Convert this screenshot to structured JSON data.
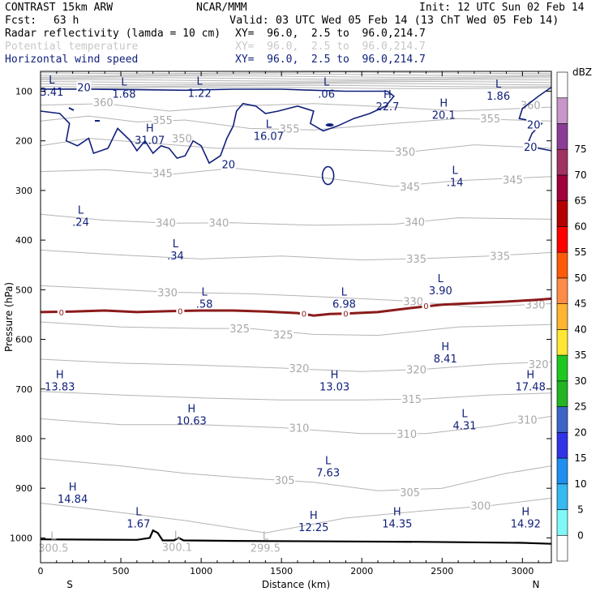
{
  "header": {
    "model": "CONTRAST 15km ARW",
    "center": "NCAR/MMM",
    "init": "Init: 12 UTC Sun 02 Feb 14",
    "fcst_label": "Fcst:",
    "fcst_value": "63 h",
    "valid": "Valid: 03 UTC Wed 05 Feb 14 (13 ChT Wed 05 Feb 14)",
    "fields": [
      {
        "name": "Radar reflectivity (lamda = 10 cm)",
        "xy": "XY=  96.0,  2.5 to  96.0,214.7",
        "color": "#000000"
      },
      {
        "name": "Potential temperature",
        "xy": "XY=  96.0,  2.5 to  96.0,214.7",
        "color": "#c8c8c8"
      },
      {
        "name": "Horizontal wind speed",
        "xy": "XY=  96.0,  2.5 to  96.0,214.7",
        "color": "#10207a"
      }
    ]
  },
  "chart_data": {
    "type": "cross-section",
    "xlabel": "Distance (km)",
    "ylabel": "Pressure (hPa)",
    "xlim": [
      0,
      3180
    ],
    "ylim": [
      1050,
      60
    ],
    "x_ticks": [
      0,
      500,
      1000,
      1500,
      2000,
      2500,
      3000
    ],
    "y_ticks": [
      100,
      200,
      300,
      400,
      500,
      600,
      700,
      800,
      900,
      1000
    ],
    "x_end_labels": {
      "left": "S",
      "right": "N"
    },
    "colorbar": {
      "unit": "dBZ",
      "levels": [
        0,
        5,
        10,
        15,
        20,
        25,
        30,
        35,
        40,
        45,
        50,
        55,
        60,
        65,
        70,
        75
      ],
      "colors": [
        "#ffffff",
        "#7ff8f8",
        "#36b8f0",
        "#1e8ff0",
        "#3232e6",
        "#3c64c8",
        "#23b423",
        "#1ec81e",
        "#ffe632",
        "#ffb432",
        "#ff8c46",
        "#ff5a0a",
        "#ff0000",
        "#b40000",
        "#a0003c",
        "#a03264",
        "#8c3c96",
        "#c896c8",
        "#ffffff"
      ]
    },
    "theta_contour_labels": [
      {
        "v": "360",
        "x": 390,
        "p": 122
      },
      {
        "v": "360",
        "x": 3050,
        "p": 128
      },
      {
        "v": "355",
        "x": 760,
        "p": 158
      },
      {
        "v": "355",
        "x": 1550,
        "p": 175
      },
      {
        "v": "355",
        "x": 2800,
        "p": 155
      },
      {
        "v": "350",
        "x": 880,
        "p": 195
      },
      {
        "v": "350",
        "x": 2270,
        "p": 222
      },
      {
        "v": "345",
        "x": 760,
        "p": 265
      },
      {
        "v": "345",
        "x": 2300,
        "p": 292
      },
      {
        "v": "345",
        "x": 2940,
        "p": 278
      },
      {
        "v": "340",
        "x": 780,
        "p": 365
      },
      {
        "v": "340",
        "x": 1110,
        "p": 365
      },
      {
        "v": "340",
        "x": 2330,
        "p": 363
      },
      {
        "v": "335",
        "x": 2340,
        "p": 437
      },
      {
        "v": "335",
        "x": 2860,
        "p": 432
      },
      {
        "v": "330",
        "x": 790,
        "p": 505
      },
      {
        "v": "330",
        "x": 2320,
        "p": 523
      },
      {
        "v": "330",
        "x": 3080,
        "p": 530
      },
      {
        "v": "325",
        "x": 1240,
        "p": 578
      },
      {
        "v": "325",
        "x": 1510,
        "p": 590
      },
      {
        "v": "320",
        "x": 1610,
        "p": 658
      },
      {
        "v": "320",
        "x": 2340,
        "p": 660
      },
      {
        "v": "320",
        "x": 3100,
        "p": 650
      },
      {
        "v": "315",
        "x": 2310,
        "p": 720
      },
      {
        "v": "310",
        "x": 1610,
        "p": 778
      },
      {
        "v": "310",
        "x": 2280,
        "p": 790
      },
      {
        "v": "310",
        "x": 3030,
        "p": 762
      },
      {
        "v": "305",
        "x": 1520,
        "p": 883
      },
      {
        "v": "305",
        "x": 2300,
        "p": 908
      },
      {
        "v": "300",
        "x": 2740,
        "p": 935
      }
    ],
    "wind_contour_labels": [
      {
        "v": "20",
        "x": 270,
        "p": 92
      },
      {
        "v": "20",
        "x": 1170,
        "p": 247
      },
      {
        "v": "20",
        "x": 3070,
        "p": 167
      },
      {
        "v": "20",
        "x": 3050,
        "p": 212
      }
    ],
    "reflectivity_zero_labels": [
      {
        "v": "0",
        "x": 130,
        "p": 545
      },
      {
        "v": "0",
        "x": 870,
        "p": 543
      },
      {
        "v": "0",
        "x": 1640,
        "p": 548
      },
      {
        "v": "0",
        "x": 1900,
        "p": 548
      },
      {
        "v": "0",
        "x": 2400,
        "p": 532
      }
    ],
    "extrema_markers": [
      {
        "kind": "L",
        "value": "3.41",
        "x": 70,
        "p": 88,
        "field": "wind"
      },
      {
        "kind": "L",
        "value": "1.68",
        "x": 520,
        "p": 92,
        "field": "wind"
      },
      {
        "kind": "L",
        "value": "1.22",
        "x": 990,
        "p": 90,
        "field": "wind"
      },
      {
        "kind": "L",
        "value": ".06",
        "x": 1780,
        "p": 92,
        "field": "wind"
      },
      {
        "kind": "H",
        "value": "22.7",
        "x": 2160,
        "p": 117,
        "field": "wind"
      },
      {
        "kind": "H",
        "value": "20.1",
        "x": 2510,
        "p": 134,
        "field": "wind"
      },
      {
        "kind": "L",
        "value": "1.86",
        "x": 2850,
        "p": 96,
        "field": "wind"
      },
      {
        "kind": "H",
        "value": "31.07",
        "x": 680,
        "p": 185,
        "field": "wind"
      },
      {
        "kind": "L",
        "value": "16.07",
        "x": 1420,
        "p": 177,
        "field": "wind"
      },
      {
        "kind": "L",
        "value": ".14",
        "x": 2580,
        "p": 270,
        "field": "wind"
      },
      {
        "kind": "L",
        "value": ".24",
        "x": 250,
        "p": 350,
        "field": "wind"
      },
      {
        "kind": "L",
        "value": ".34",
        "x": 840,
        "p": 418,
        "field": "wind"
      },
      {
        "kind": "L",
        "value": "3.90",
        "x": 2490,
        "p": 488,
        "field": "wind"
      },
      {
        "kind": "L",
        "value": ".58",
        "x": 1020,
        "p": 515,
        "field": "wind"
      },
      {
        "kind": "L",
        "value": "6.98",
        "x": 1890,
        "p": 515,
        "field": "wind"
      },
      {
        "kind": "H",
        "value": "8.41",
        "x": 2520,
        "p": 625,
        "field": "wind"
      },
      {
        "kind": "H",
        "value": "13.83",
        "x": 120,
        "p": 682,
        "field": "wind"
      },
      {
        "kind": "H",
        "value": "13.03",
        "x": 1830,
        "p": 682,
        "field": "wind"
      },
      {
        "kind": "H",
        "value": "17.48",
        "x": 3050,
        "p": 682,
        "field": "wind"
      },
      {
        "kind": "H",
        "value": "10.63",
        "x": 940,
        "p": 750,
        "field": "wind"
      },
      {
        "kind": "L",
        "value": "4.31",
        "x": 2640,
        "p": 760,
        "field": "wind"
      },
      {
        "kind": "L",
        "value": "7.63",
        "x": 1790,
        "p": 855,
        "field": "wind"
      },
      {
        "kind": "H",
        "value": "14.84",
        "x": 200,
        "p": 908,
        "field": "wind"
      },
      {
        "kind": "H",
        "value": "14.35",
        "x": 2220,
        "p": 958,
        "field": "wind"
      },
      {
        "kind": "H",
        "value": "14.92",
        "x": 3020,
        "p": 958,
        "field": "wind"
      },
      {
        "kind": "L",
        "value": "1.67",
        "x": 610,
        "p": 958,
        "field": "wind"
      },
      {
        "kind": "H",
        "value": "12.25",
        "x": 1700,
        "p": 965,
        "field": "wind"
      },
      {
        "kind": "L",
        "value": "300.5",
        "x": 80,
        "p": 1007,
        "field": "theta"
      },
      {
        "kind": "L",
        "value": "300.1",
        "x": 850,
        "p": 1005,
        "field": "theta"
      },
      {
        "kind": "L",
        "value": "299.5",
        "x": 1400,
        "p": 1007,
        "field": "theta"
      }
    ],
    "theta_lines": [
      {
        "v": 360,
        "pts": [
          [
            0,
            128
          ],
          [
            400,
            125
          ],
          [
            800,
            140
          ],
          [
            1200,
            130
          ],
          [
            1700,
            125
          ],
          [
            2200,
            132
          ],
          [
            2600,
            140
          ],
          [
            3180,
            132
          ]
        ]
      },
      {
        "v": 355,
        "pts": [
          [
            0,
            160
          ],
          [
            300,
            150
          ],
          [
            600,
            162
          ],
          [
            900,
            158
          ],
          [
            1300,
            175
          ],
          [
            1700,
            178
          ],
          [
            2200,
            165
          ],
          [
            2600,
            155
          ],
          [
            3180,
            160
          ]
        ]
      },
      {
        "v": 350,
        "pts": [
          [
            0,
            210
          ],
          [
            300,
            195
          ],
          [
            700,
            205
          ],
          [
            1100,
            215
          ],
          [
            1500,
            215
          ],
          [
            1900,
            218
          ],
          [
            2300,
            222
          ],
          [
            2700,
            208
          ],
          [
            3180,
            215
          ]
        ]
      },
      {
        "v": 345,
        "pts": [
          [
            0,
            262
          ],
          [
            400,
            258
          ],
          [
            800,
            268
          ],
          [
            1200,
            255
          ],
          [
            1700,
            272
          ],
          [
            2200,
            292
          ],
          [
            2600,
            280
          ],
          [
            3180,
            272
          ]
        ]
      },
      {
        "v": 340,
        "pts": [
          [
            0,
            348
          ],
          [
            400,
            360
          ],
          [
            800,
            366
          ],
          [
            1200,
            365
          ],
          [
            1700,
            370
          ],
          [
            2200,
            368
          ],
          [
            2600,
            355
          ],
          [
            3180,
            358
          ]
        ]
      },
      {
        "v": 335,
        "pts": [
          [
            0,
            420
          ],
          [
            500,
            430
          ],
          [
            1000,
            438
          ],
          [
            1500,
            432
          ],
          [
            2000,
            440
          ],
          [
            2400,
            437
          ],
          [
            2800,
            432
          ],
          [
            3180,
            425
          ]
        ]
      },
      {
        "v": 330,
        "pts": [
          [
            0,
            492
          ],
          [
            400,
            498
          ],
          [
            800,
            505
          ],
          [
            1300,
            508
          ],
          [
            1800,
            515
          ],
          [
            2300,
            523
          ],
          [
            2700,
            535
          ],
          [
            3180,
            528
          ]
        ]
      },
      {
        "v": 325,
        "pts": [
          [
            0,
            565
          ],
          [
            500,
            575
          ],
          [
            1000,
            578
          ],
          [
            1300,
            578
          ],
          [
            1700,
            590
          ],
          [
            2100,
            592
          ],
          [
            2600,
            575
          ],
          [
            3180,
            570
          ]
        ]
      },
      {
        "v": 320,
        "pts": [
          [
            0,
            640
          ],
          [
            500,
            648
          ],
          [
            1000,
            652
          ],
          [
            1500,
            658
          ],
          [
            2000,
            665
          ],
          [
            2400,
            660
          ],
          [
            2800,
            650
          ],
          [
            3180,
            645
          ]
        ]
      },
      {
        "v": 315,
        "pts": [
          [
            0,
            705
          ],
          [
            500,
            712
          ],
          [
            1000,
            718
          ],
          [
            1500,
            722
          ],
          [
            2000,
            722
          ],
          [
            2400,
            720
          ],
          [
            2800,
            712
          ],
          [
            3180,
            708
          ]
        ]
      },
      {
        "v": 310,
        "pts": [
          [
            0,
            760
          ],
          [
            500,
            772
          ],
          [
            1000,
            772
          ],
          [
            1500,
            778
          ],
          [
            2000,
            790
          ],
          [
            2400,
            790
          ],
          [
            2800,
            775
          ],
          [
            3180,
            755
          ]
        ]
      },
      {
        "v": 305,
        "pts": [
          [
            0,
            840
          ],
          [
            500,
            855
          ],
          [
            900,
            870
          ],
          [
            1300,
            880
          ],
          [
            1700,
            888
          ],
          [
            2100,
            905
          ],
          [
            2500,
            900
          ],
          [
            2900,
            870
          ],
          [
            3180,
            855
          ]
        ]
      },
      {
        "v": 300,
        "pts": [
          [
            0,
            930
          ],
          [
            400,
            945
          ],
          [
            900,
            965
          ],
          [
            1400,
            990
          ],
          [
            1900,
            960
          ],
          [
            2400,
            945
          ],
          [
            2800,
            935
          ],
          [
            3180,
            920
          ]
        ]
      }
    ],
    "wind20_contours": [
      [
        [
          0,
          140
        ],
        [
          120,
          145
        ],
        [
          180,
          165
        ],
        [
          160,
          200
        ],
        [
          230,
          210
        ],
        [
          300,
          195
        ],
        [
          330,
          225
        ],
        [
          420,
          215
        ],
        [
          480,
          175
        ],
        [
          560,
          200
        ],
        [
          600,
          220
        ],
        [
          650,
          200
        ],
        [
          700,
          225
        ],
        [
          750,
          210
        ],
        [
          800,
          215
        ],
        [
          850,
          235
        ],
        [
          900,
          230
        ],
        [
          950,
          200
        ],
        [
          1000,
          210
        ],
        [
          1050,
          245
        ],
        [
          1120,
          230
        ],
        [
          1160,
          195
        ],
        [
          1200,
          170
        ],
        [
          1220,
          140
        ],
        [
          1260,
          125
        ],
        [
          1340,
          130
        ],
        [
          1400,
          145
        ],
        [
          1480,
          140
        ],
        [
          1600,
          130
        ],
        [
          1700,
          140
        ],
        [
          1680,
          165
        ],
        [
          1760,
          180
        ],
        [
          1850,
          170
        ],
        [
          1950,
          155
        ],
        [
          2050,
          145
        ],
        [
          2150,
          130
        ],
        [
          2200,
          110
        ],
        [
          2160,
          100
        ],
        [
          2050,
          100
        ],
        [
          1900,
          100
        ],
        [
          1700,
          98
        ],
        [
          1500,
          96
        ],
        [
          1200,
          96
        ],
        [
          900,
          98
        ],
        [
          600,
          97
        ],
        [
          300,
          96
        ],
        [
          0,
          96
        ]
      ],
      [
        [
          3180,
          92
        ],
        [
          3100,
          110
        ],
        [
          3000,
          135
        ],
        [
          2980,
          155
        ],
        [
          3060,
          160
        ],
        [
          3120,
          165
        ],
        [
          3060,
          185
        ],
        [
          3040,
          200
        ],
        [
          3100,
          215
        ],
        [
          3180,
          220
        ]
      ]
    ],
    "reflectivity_zero_line": [
      [
        0,
        545
      ],
      [
        200,
        544
      ],
      [
        400,
        542
      ],
      [
        600,
        545
      ],
      [
        800,
        543
      ],
      [
        1000,
        542
      ],
      [
        1200,
        542
      ],
      [
        1400,
        544
      ],
      [
        1600,
        547
      ],
      [
        1700,
        552
      ],
      [
        1800,
        549
      ],
      [
        1900,
        548
      ],
      [
        2100,
        545
      ],
      [
        2300,
        537
      ],
      [
        2500,
        530
      ],
      [
        2700,
        527
      ],
      [
        2900,
        524
      ],
      [
        3100,
        520
      ],
      [
        3180,
        518
      ]
    ],
    "terrain_line": [
      [
        0,
        1003
      ],
      [
        600,
        1004
      ],
      [
        680,
        1000
      ],
      [
        700,
        985
      ],
      [
        730,
        990
      ],
      [
        760,
        1005
      ],
      [
        830,
        1005
      ],
      [
        860,
        1000
      ],
      [
        890,
        1005
      ],
      [
        1200,
        1006
      ],
      [
        1800,
        1007
      ],
      [
        2400,
        1008
      ],
      [
        3000,
        1010
      ],
      [
        3180,
        1012
      ]
    ]
  }
}
